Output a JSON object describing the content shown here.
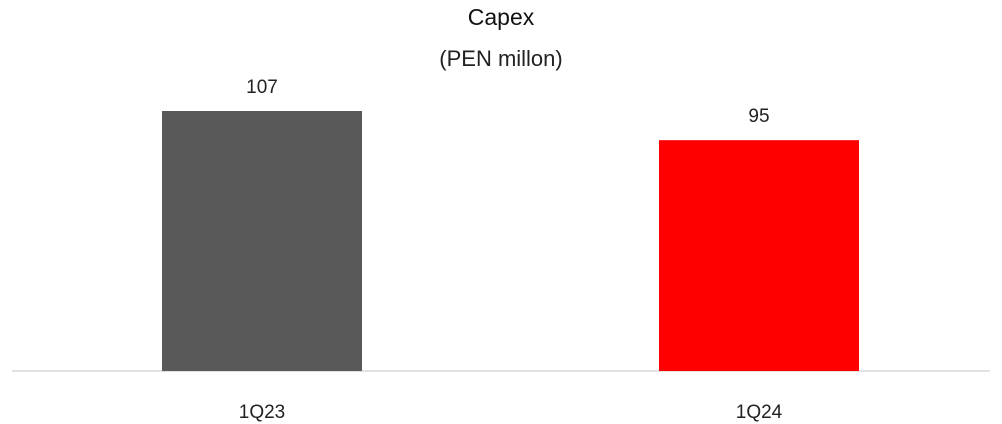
{
  "chart_data": {
    "type": "bar",
    "title": "Capex",
    "subtitle": "(PEN millon)",
    "categories": [
      "1Q23",
      "1Q24"
    ],
    "values": [
      107,
      95
    ],
    "data_labels": [
      "107",
      "95"
    ],
    "colors": [
      "#595959",
      "#ff0000"
    ],
    "ylim": [
      0,
      107
    ],
    "grid": false,
    "legend": "none",
    "axis_color": "#d9d9d9"
  }
}
